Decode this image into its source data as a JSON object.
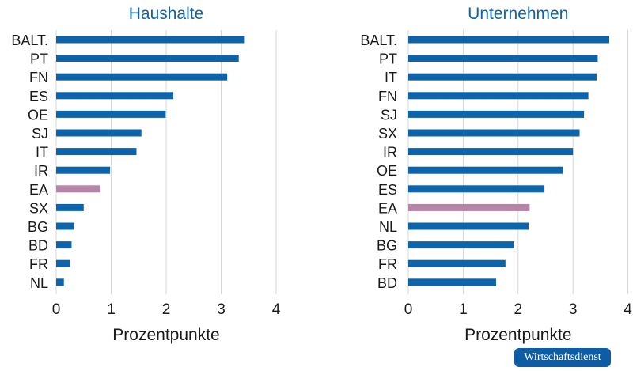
{
  "chart_data": [
    {
      "type": "bar",
      "orientation": "horizontal",
      "title": "Haushalte",
      "xlabel": "Prozentpunkte",
      "xlim": [
        0,
        4
      ],
      "xticks": [
        0,
        1,
        2,
        3,
        4
      ],
      "grid": "vertical",
      "categories": [
        "BALT.",
        "PT",
        "FN",
        "ES",
        "OE",
        "SJ",
        "IT",
        "IR",
        "EA",
        "SX",
        "BG",
        "BD",
        "FR",
        "NL"
      ],
      "values": [
        3.43,
        3.32,
        3.11,
        2.13,
        1.99,
        1.55,
        1.46,
        0.98,
        0.8,
        0.5,
        0.33,
        0.28,
        0.25,
        0.14
      ],
      "highlight": "EA"
    },
    {
      "type": "bar",
      "orientation": "horizontal",
      "title": "Unternehmen",
      "xlabel": "Prozentpunkte",
      "xlim": [
        0,
        4
      ],
      "xticks": [
        0,
        1,
        2,
        3,
        4
      ],
      "grid": "vertical",
      "categories": [
        "BALT.",
        "PT",
        "IT",
        "FN",
        "SJ",
        "SX",
        "IR",
        "OE",
        "ES",
        "EA",
        "NL",
        "BG",
        "FR",
        "BD"
      ],
      "values": [
        3.66,
        3.45,
        3.43,
        3.28,
        3.2,
        3.12,
        3.0,
        2.81,
        2.48,
        2.21,
        2.19,
        1.93,
        1.77,
        1.6
      ],
      "highlight": "EA"
    }
  ],
  "colors": {
    "bar": "#0d64aa",
    "highlight": "#b586a8",
    "title": "#0d64aa",
    "grid": "#d7d7d7",
    "text": "#1a1a1a"
  },
  "brand": {
    "label": "Wirtschaftsdienst"
  }
}
